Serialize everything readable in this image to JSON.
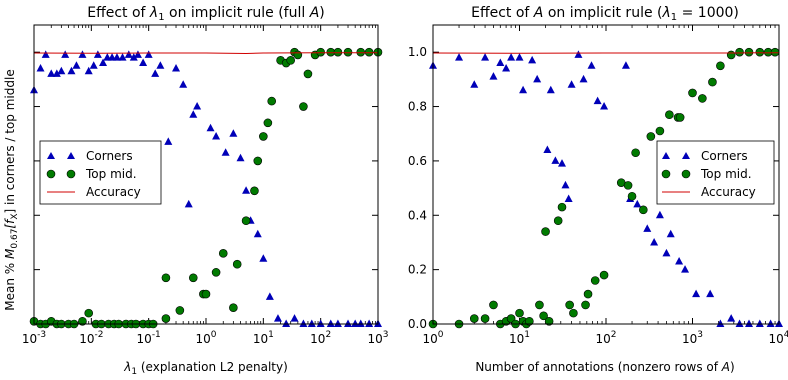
{
  "figure": {
    "ylabel": "Mean % M_{0.67}[f_X] in corners / top middle"
  },
  "chart_data": [
    {
      "type": "scatter",
      "title": "Effect of λ1 on implicit rule (full A)",
      "xlabel": "λ1 (explanation L2 penalty)",
      "x_scale": "log",
      "xlim": [
        0.001,
        1000
      ],
      "ylim": [
        0,
        1.1
      ],
      "x_ticks": [
        {
          "value": 0.001,
          "base": "10",
          "exp": "-3"
        },
        {
          "value": 0.01,
          "base": "10",
          "exp": "-2"
        },
        {
          "value": 0.1,
          "base": "10",
          "exp": "-1"
        },
        {
          "value": 1,
          "base": "10",
          "exp": "0"
        },
        {
          "value": 10,
          "base": "10",
          "exp": "1"
        },
        {
          "value": 100,
          "base": "10",
          "exp": "2"
        },
        {
          "value": 1000,
          "base": "10",
          "exp": "3"
        }
      ],
      "y_ticks": [],
      "legend": {
        "position": "center-left",
        "entries": [
          "Corners",
          "Top mid.",
          "Accuracy"
        ]
      },
      "series": [
        {
          "name": "Corners",
          "marker": "triangle",
          "color": "#0000b8",
          "points": [
            [
              0.001,
              0.86
            ],
            [
              0.0013,
              0.94
            ],
            [
              0.0016,
              0.99
            ],
            [
              0.002,
              0.92
            ],
            [
              0.0025,
              0.92
            ],
            [
              0.003,
              0.93
            ],
            [
              0.0035,
              0.99
            ],
            [
              0.0045,
              0.93
            ],
            [
              0.0055,
              0.95
            ],
            [
              0.007,
              0.99
            ],
            [
              0.009,
              0.93
            ],
            [
              0.011,
              0.95
            ],
            [
              0.013,
              0.99
            ],
            [
              0.016,
              0.96
            ],
            [
              0.019,
              0.98
            ],
            [
              0.023,
              0.98
            ],
            [
              0.028,
              0.98
            ],
            [
              0.035,
              0.98
            ],
            [
              0.045,
              0.99
            ],
            [
              0.055,
              0.98
            ],
            [
              0.065,
              0.99
            ],
            [
              0.08,
              0.96
            ],
            [
              0.1,
              0.99
            ],
            [
              0.13,
              0.92
            ],
            [
              0.16,
              0.95
            ],
            [
              0.22,
              0.67
            ],
            [
              0.3,
              0.94
            ],
            [
              0.4,
              0.88
            ],
            [
              0.5,
              0.44
            ],
            [
              0.6,
              0.77
            ],
            [
              0.7,
              0.8
            ],
            [
              1.2,
              0.72
            ],
            [
              1.5,
              0.69
            ],
            [
              2.2,
              0.63
            ],
            [
              3,
              0.7
            ],
            [
              4,
              0.61
            ],
            [
              5,
              0.49
            ],
            [
              6,
              0.38
            ],
            [
              8,
              0.33
            ],
            [
              10,
              0.24
            ],
            [
              13,
              0.1
            ],
            [
              18,
              0.02
            ],
            [
              25,
              0
            ],
            [
              35,
              0.02
            ],
            [
              50,
              0
            ],
            [
              70,
              0
            ],
            [
              100,
              0
            ],
            [
              150,
              0
            ],
            [
              200,
              0
            ],
            [
              300,
              0
            ],
            [
              400,
              0
            ],
            [
              500,
              0
            ],
            [
              700,
              0
            ],
            [
              1000,
              0
            ]
          ]
        },
        {
          "name": "Top mid.",
          "marker": "circle",
          "color": "#007a00",
          "points": [
            [
              0.001,
              0.01
            ],
            [
              0.0013,
              0
            ],
            [
              0.0016,
              0
            ],
            [
              0.002,
              0.01
            ],
            [
              0.0025,
              0
            ],
            [
              0.003,
              0
            ],
            [
              0.004,
              0
            ],
            [
              0.005,
              0
            ],
            [
              0.007,
              0.01
            ],
            [
              0.009,
              0.04
            ],
            [
              0.012,
              0
            ],
            [
              0.015,
              0
            ],
            [
              0.02,
              0
            ],
            [
              0.025,
              0
            ],
            [
              0.03,
              0
            ],
            [
              0.04,
              0
            ],
            [
              0.05,
              0
            ],
            [
              0.06,
              0
            ],
            [
              0.08,
              0
            ],
            [
              0.1,
              0
            ],
            [
              0.12,
              0
            ],
            [
              0.2,
              0.17
            ],
            [
              0.2,
              0.02
            ],
            [
              0.35,
              0.05
            ],
            [
              0.6,
              0.17
            ],
            [
              0.9,
              0.11
            ],
            [
              1,
              0.11
            ],
            [
              1.5,
              0.19
            ],
            [
              2,
              0.26
            ],
            [
              3,
              0.06
            ],
            [
              3.5,
              0.22
            ],
            [
              5,
              0.38
            ],
            [
              7,
              0.49
            ],
            [
              8,
              0.6
            ],
            [
              10,
              0.69
            ],
            [
              12,
              0.74
            ],
            [
              14,
              0.82
            ],
            [
              20,
              0.97
            ],
            [
              25,
              0.96
            ],
            [
              30,
              0.97
            ],
            [
              35,
              1.0
            ],
            [
              40,
              0.99
            ],
            [
              50,
              0.8
            ],
            [
              60,
              0.92
            ],
            [
              80,
              0.99
            ],
            [
              100,
              1.0
            ],
            [
              150,
              1.0
            ],
            [
              200,
              1.0
            ],
            [
              300,
              1.0
            ],
            [
              500,
              1.0
            ],
            [
              700,
              1.0
            ],
            [
              1000,
              1.0
            ]
          ]
        },
        {
          "name": "Accuracy",
          "marker": "line",
          "color": "#d00000",
          "points": [
            [
              0.001,
              0.997
            ],
            [
              0.01,
              0.996
            ],
            [
              0.1,
              0.997
            ],
            [
              1,
              0.997
            ],
            [
              5,
              0.995
            ],
            [
              10,
              0.997
            ],
            [
              100,
              0.998
            ],
            [
              1000,
              0.998
            ]
          ]
        }
      ]
    },
    {
      "type": "scatter",
      "title": "Effect of A on implicit rule (λ1 = 1000)",
      "xlabel": "Number of annotations (nonzero rows of A)",
      "x_scale": "log",
      "xlim": [
        1,
        10000
      ],
      "ylim": [
        0,
        1.1
      ],
      "x_ticks": [
        {
          "value": 1,
          "base": "10",
          "exp": "0"
        },
        {
          "value": 10,
          "base": "10",
          "exp": "1"
        },
        {
          "value": 100,
          "base": "10",
          "exp": "2"
        },
        {
          "value": 1000,
          "base": "10",
          "exp": "3"
        },
        {
          "value": 10000,
          "base": "10",
          "exp": "4"
        }
      ],
      "y_ticks": [
        "0.0",
        "0.2",
        "0.4",
        "0.6",
        "0.8",
        "1.0"
      ],
      "legend": {
        "position": "center-right",
        "entries": [
          "Corners",
          "Top mid.",
          "Accuracy"
        ]
      },
      "series": [
        {
          "name": "Corners",
          "marker": "triangle",
          "color": "#0000b8",
          "points": [
            [
              1,
              0.95
            ],
            [
              2,
              0.98
            ],
            [
              3,
              0.88
            ],
            [
              4,
              0.98
            ],
            [
              5,
              0.91
            ],
            [
              6,
              0.96
            ],
            [
              7,
              0.94
            ],
            [
              8,
              0.98
            ],
            [
              10,
              0.98
            ],
            [
              11,
              0.86
            ],
            [
              14,
              0.97
            ],
            [
              16,
              0.9
            ],
            [
              21,
              0.64
            ],
            [
              23,
              0.86
            ],
            [
              26,
              0.6
            ],
            [
              31,
              0.59
            ],
            [
              34,
              0.51
            ],
            [
              37,
              0.46
            ],
            [
              40,
              0.88
            ],
            [
              48,
              0.99
            ],
            [
              55,
              0.9
            ],
            [
              68,
              0.95
            ],
            [
              80,
              0.82
            ],
            [
              95,
              0.8
            ],
            [
              170,
              0.95
            ],
            [
              190,
              0.46
            ],
            [
              230,
              0.44
            ],
            [
              300,
              0.35
            ],
            [
              360,
              0.3
            ],
            [
              420,
              0.4
            ],
            [
              500,
              0.26
            ],
            [
              560,
              0.33
            ],
            [
              700,
              0.23
            ],
            [
              820,
              0.2
            ],
            [
              1100,
              0.11
            ],
            [
              1600,
              0.11
            ],
            [
              2100,
              0
            ],
            [
              2800,
              0.02
            ],
            [
              3500,
              0
            ],
            [
              4500,
              0
            ],
            [
              6000,
              0
            ],
            [
              8000,
              0
            ],
            [
              10000,
              0
            ]
          ]
        },
        {
          "name": "Top mid.",
          "marker": "circle",
          "color": "#007a00",
          "points": [
            [
              1,
              0
            ],
            [
              2,
              0
            ],
            [
              3,
              0.02
            ],
            [
              4,
              0.02
            ],
            [
              5,
              0.07
            ],
            [
              6,
              0
            ],
            [
              7,
              0.01
            ],
            [
              8,
              0.02
            ],
            [
              9,
              0
            ],
            [
              10,
              0.04
            ],
            [
              11,
              0.01
            ],
            [
              12,
              0
            ],
            [
              13,
              0.01
            ],
            [
              17,
              0.07
            ],
            [
              19,
              0.03
            ],
            [
              20,
              0.34
            ],
            [
              22,
              0.01
            ],
            [
              28,
              0.38
            ],
            [
              31,
              0.43
            ],
            [
              38,
              0.07
            ],
            [
              42,
              0.04
            ],
            [
              58,
              0.07
            ],
            [
              62,
              0.11
            ],
            [
              75,
              0.16
            ],
            [
              95,
              0.18
            ],
            [
              150,
              0.52
            ],
            [
              180,
              0.51
            ],
            [
              200,
              0.47
            ],
            [
              220,
              0.63
            ],
            [
              270,
              0.42
            ],
            [
              330,
              0.69
            ],
            [
              420,
              0.71
            ],
            [
              540,
              0.77
            ],
            [
              680,
              0.76
            ],
            [
              720,
              0.76
            ],
            [
              1000,
              0.85
            ],
            [
              1300,
              0.83
            ],
            [
              1700,
              0.89
            ],
            [
              2100,
              0.95
            ],
            [
              2800,
              0.99
            ],
            [
              3500,
              1.0
            ],
            [
              4500,
              1.0
            ],
            [
              6000,
              1.0
            ],
            [
              7500,
              1.0
            ],
            [
              9000,
              1.0
            ]
          ]
        },
        {
          "name": "Accuracy",
          "marker": "line",
          "color": "#d00000",
          "points": [
            [
              1,
              0.997
            ],
            [
              10,
              0.996
            ],
            [
              100,
              0.997
            ],
            [
              1000,
              0.997
            ],
            [
              3000,
              0.997
            ],
            [
              10000,
              0.998
            ]
          ]
        }
      ]
    }
  ]
}
